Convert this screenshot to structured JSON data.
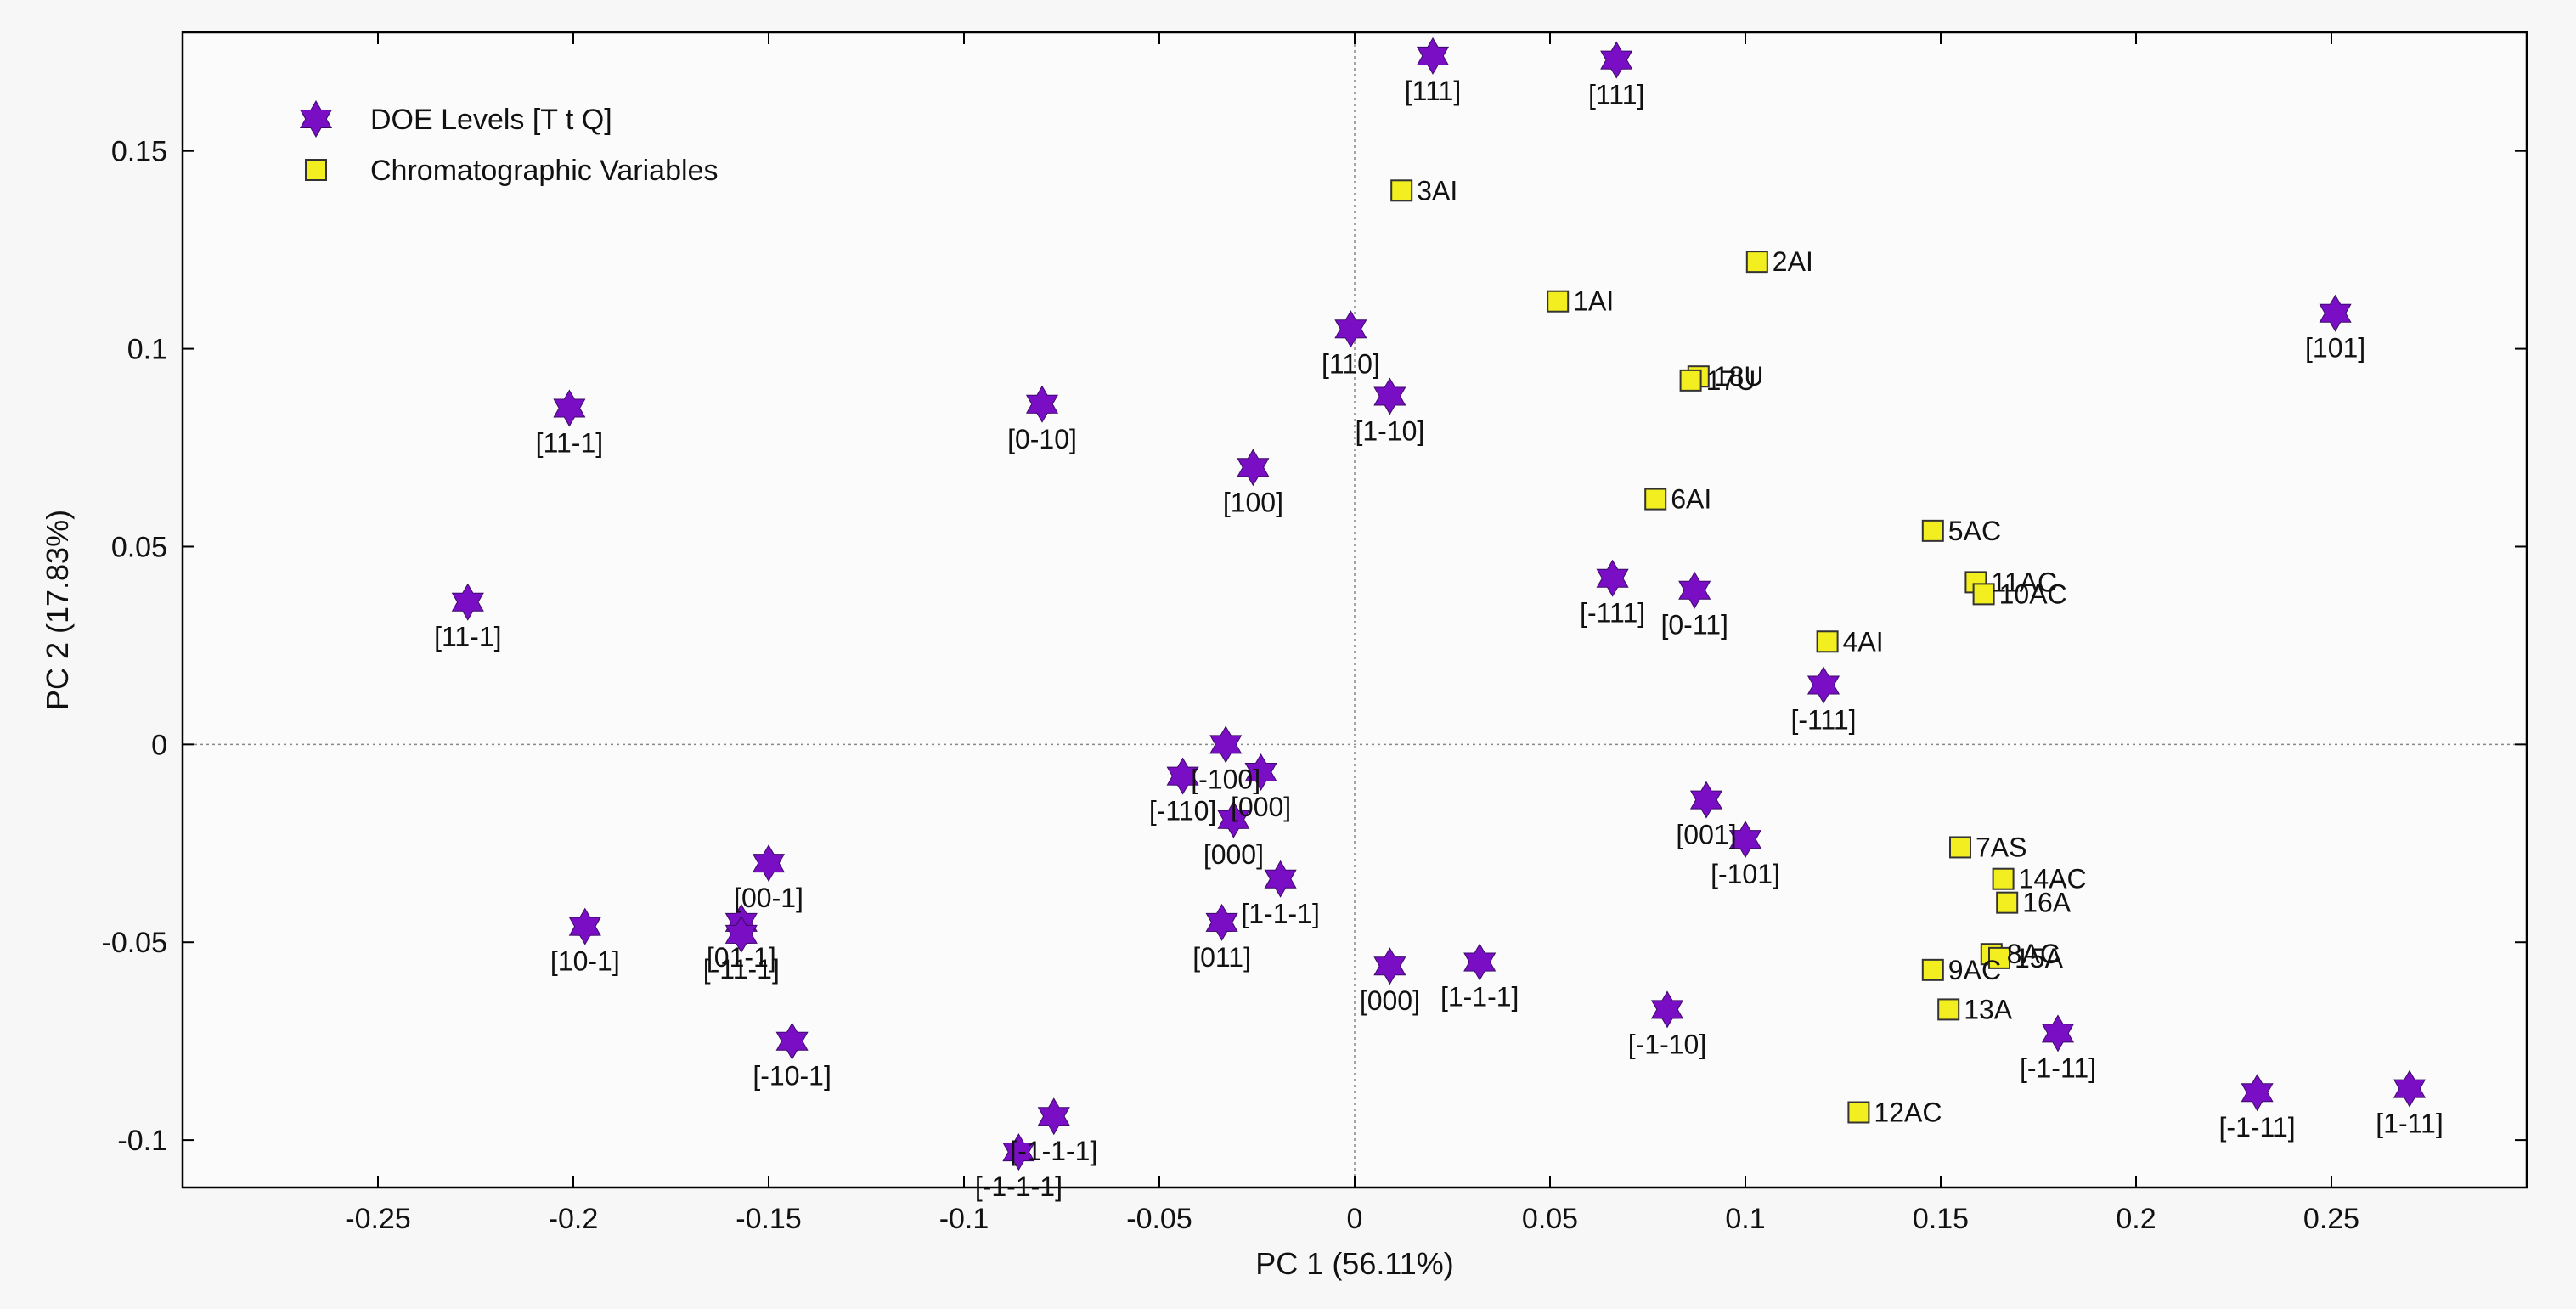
{
  "chart_data": {
    "type": "scatter",
    "title": "",
    "xlabel": "PC 1 (56.11%)",
    "ylabel": "PC 2 (17.83%)",
    "xlim": [
      -0.3,
      0.3
    ],
    "ylim": [
      -0.112,
      0.18
    ],
    "xticks": [
      -0.25,
      -0.2,
      -0.15,
      -0.1,
      -0.05,
      0,
      0.05,
      0.1,
      0.15,
      0.2,
      0.25
    ],
    "xtick_labels": [
      "-0.25",
      "-0.2",
      "-0.15",
      "-0.1",
      "-0.05",
      "0",
      "0.05",
      "0.1",
      "0.15",
      "0.2",
      "0.25"
    ],
    "yticks": [
      -0.1,
      -0.05,
      0,
      0.05,
      0.1,
      0.15
    ],
    "ytick_labels": [
      "-0.1",
      "-0.05",
      "0",
      "0.05",
      "0.1",
      "0.15"
    ],
    "grid": false,
    "zero_lines": true,
    "legend_position": "top-left",
    "series": [
      {
        "name": "DOE Levels [T t Q]",
        "marker": "star",
        "color": "#7a0ec4",
        "points": [
          {
            "x": 0.02,
            "y": 0.174,
            "label": "[111]"
          },
          {
            "x": 0.067,
            "y": 0.173,
            "label": "[111]"
          },
          {
            "x": 0.251,
            "y": 0.109,
            "label": "[101]"
          },
          {
            "x": -0.001,
            "y": 0.105,
            "label": "[110]"
          },
          {
            "x": 0.009,
            "y": 0.088,
            "label": "[1-10]"
          },
          {
            "x": -0.201,
            "y": 0.085,
            "label": "[11-1]"
          },
          {
            "x": -0.08,
            "y": 0.086,
            "label": "[0-10]"
          },
          {
            "x": -0.026,
            "y": 0.07,
            "label": "[100]"
          },
          {
            "x": -0.227,
            "y": 0.036,
            "label": "[11-1]"
          },
          {
            "x": 0.066,
            "y": 0.042,
            "label": "[-111]"
          },
          {
            "x": 0.087,
            "y": 0.039,
            "label": "[0-11]"
          },
          {
            "x": 0.12,
            "y": 0.015,
            "label": "[-111]"
          },
          {
            "x": -0.033,
            "y": 0.0,
            "label": "[-100]"
          },
          {
            "x": -0.024,
            "y": -0.007,
            "label": "[000]"
          },
          {
            "x": -0.044,
            "y": -0.008,
            "label": "[-110]"
          },
          {
            "x": -0.031,
            "y": -0.019,
            "label": "[000]"
          },
          {
            "x": -0.019,
            "y": -0.034,
            "label": "[1-1-1]"
          },
          {
            "x": -0.034,
            "y": -0.045,
            "label": "[011]"
          },
          {
            "x": 0.09,
            "y": -0.014,
            "label": "[001]"
          },
          {
            "x": 0.1,
            "y": -0.024,
            "label": "[-101]"
          },
          {
            "x": -0.15,
            "y": -0.03,
            "label": "[00-1]"
          },
          {
            "x": -0.157,
            "y": -0.045,
            "label": "[01-1]"
          },
          {
            "x": -0.197,
            "y": -0.046,
            "label": "[10-1]"
          },
          {
            "x": -0.157,
            "y": -0.048,
            "label": "[-11-1]"
          },
          {
            "x": 0.009,
            "y": -0.056,
            "label": "[000]"
          },
          {
            "x": 0.032,
            "y": -0.055,
            "label": "[1-1-1]"
          },
          {
            "x": -0.144,
            "y": -0.075,
            "label": "[-10-1]"
          },
          {
            "x": 0.08,
            "y": -0.067,
            "label": "[-1-10]"
          },
          {
            "x": 0.18,
            "y": -0.073,
            "label": "[-1-11]"
          },
          {
            "x": 0.231,
            "y": -0.088,
            "label": "[-1-11]"
          },
          {
            "x": 0.27,
            "y": -0.087,
            "label": "[1-11]"
          },
          {
            "x": -0.077,
            "y": -0.094,
            "label": "[-1-1-1]"
          },
          {
            "x": -0.086,
            "y": -0.103,
            "label": "[-1-1-1]"
          }
        ]
      },
      {
        "name": "Chromatographic Variables",
        "marker": "square",
        "color": "#f2ee1f",
        "points": [
          {
            "x": 0.012,
            "y": 0.14,
            "label": "3AI"
          },
          {
            "x": 0.103,
            "y": 0.122,
            "label": "2AI"
          },
          {
            "x": 0.052,
            "y": 0.112,
            "label": "1AI"
          },
          {
            "x": 0.088,
            "y": 0.093,
            "label": "18U"
          },
          {
            "x": 0.086,
            "y": 0.092,
            "label": "17U"
          },
          {
            "x": 0.077,
            "y": 0.062,
            "label": "6AI"
          },
          {
            "x": 0.148,
            "y": 0.054,
            "label": "5AC"
          },
          {
            "x": 0.159,
            "y": 0.041,
            "label": "11AC"
          },
          {
            "x": 0.161,
            "y": 0.038,
            "label": "10AC"
          },
          {
            "x": 0.121,
            "y": 0.026,
            "label": "4AI"
          },
          {
            "x": 0.155,
            "y": -0.026,
            "label": "7AS"
          },
          {
            "x": 0.166,
            "y": -0.034,
            "label": "14AC"
          },
          {
            "x": 0.167,
            "y": -0.04,
            "label": "16A"
          },
          {
            "x": 0.148,
            "y": -0.057,
            "label": "9AC"
          },
          {
            "x": 0.163,
            "y": -0.053,
            "label": "8AC"
          },
          {
            "x": 0.165,
            "y": -0.054,
            "label": "15A"
          },
          {
            "x": 0.152,
            "y": -0.067,
            "label": "13A"
          },
          {
            "x": 0.129,
            "y": -0.093,
            "label": "12AC"
          }
        ]
      }
    ]
  }
}
